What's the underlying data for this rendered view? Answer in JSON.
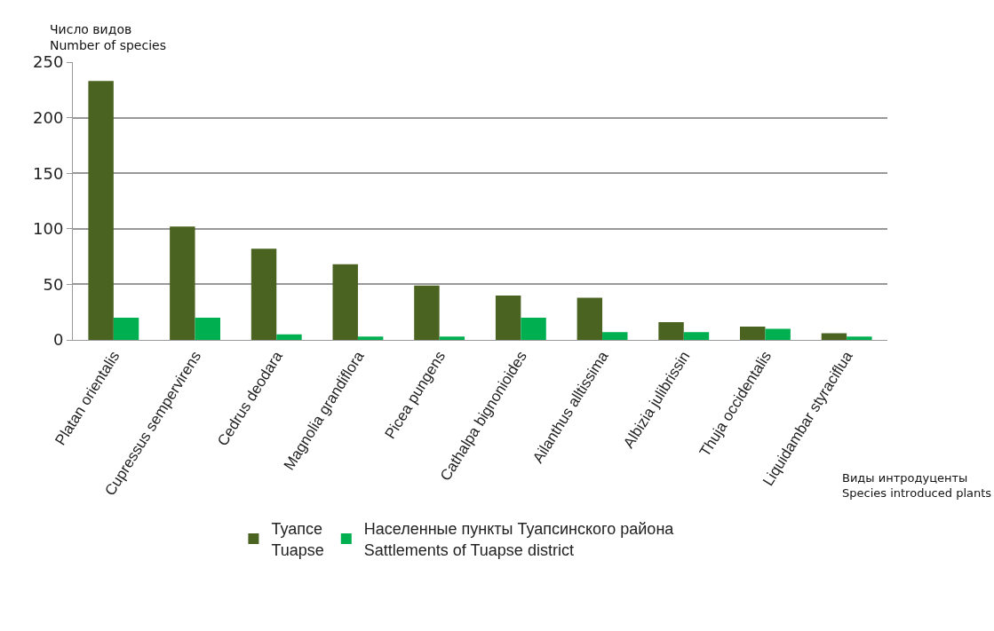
{
  "chart_data": {
    "type": "bar",
    "ylabel": "Число видов\nNumber of species",
    "xlabel": "Виды интродуценты\nSpecies introduced plants",
    "categories": [
      "Platan orientalis",
      "Cupressus sempervirens",
      "Cedrus deodara",
      "Magnolia grandiflora",
      "Picea pungens",
      "Cathalpa bignonioides",
      "Ailanthus alltissima",
      "Albizia julibrissin",
      "Thuja occidentalis",
      "Liquidambar styraciflua"
    ],
    "series": [
      {
        "name": "Туапсе\nTuapse",
        "color": "#4a6320",
        "values": [
          233,
          102,
          82,
          68,
          49,
          40,
          38,
          16,
          12,
          6
        ]
      },
      {
        "name": "Населенные пункты Туапсинского района\nSattlements of Tuapse district",
        "color": "#00b050",
        "values": [
          20,
          20,
          5,
          3,
          3,
          20,
          7,
          7,
          10,
          3
        ]
      }
    ],
    "ylim": [
      0,
      250
    ],
    "yticks": [
      0,
      50,
      100,
      150,
      200,
      250
    ],
    "grid": "y",
    "legend": "bottom"
  }
}
